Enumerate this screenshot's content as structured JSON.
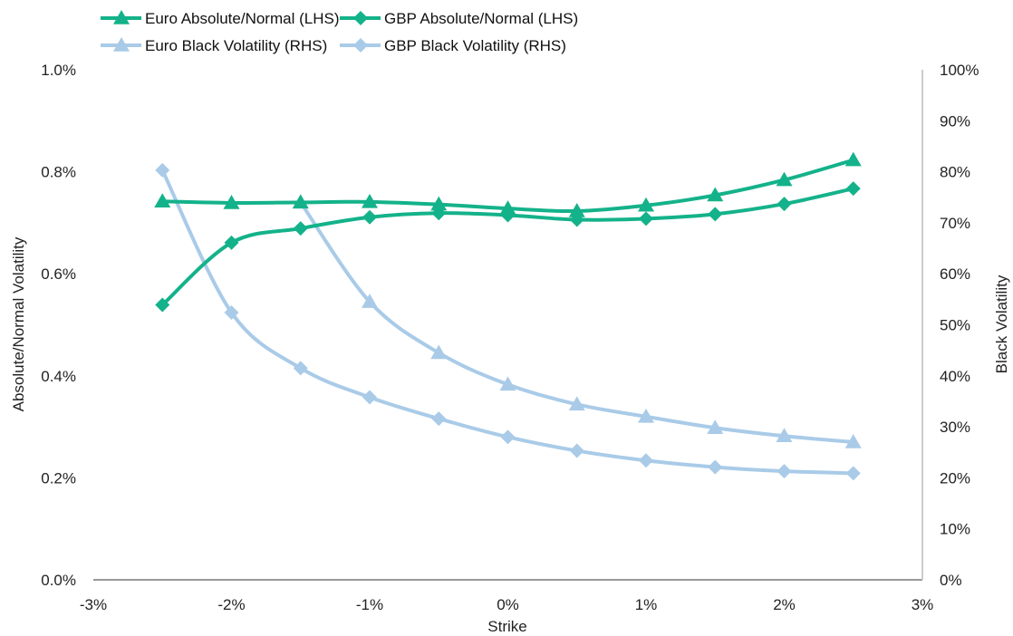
{
  "chart_data": {
    "type": "line",
    "xlabel": "Strike",
    "ylabel": "Absolute/Normal Volatility",
    "y2label": "Black Volatility",
    "xlim": [
      -3,
      3
    ],
    "ylim": [
      0,
      1.0
    ],
    "y2lim": [
      0,
      100
    ],
    "x_ticks": [
      "-3%",
      "-2%",
      "-1%",
      "0%",
      "1%",
      "2%",
      "3%"
    ],
    "y_ticks": [
      "0.0%",
      "0.2%",
      "0.4%",
      "0.6%",
      "0.8%",
      "1.0%"
    ],
    "y2_ticks": [
      "0%",
      "10%",
      "20%",
      "30%",
      "40%",
      "50%",
      "60%",
      "70%",
      "80%",
      "90%",
      "100%"
    ],
    "legend_position": "top-left",
    "grid": false,
    "colors": {
      "green": "#14b28a",
      "lightblue": "#a9cbe8",
      "axis": "#999999"
    },
    "x": [
      -2.5,
      -2.0,
      -1.5,
      -1.0,
      -0.5,
      0.0,
      0.5,
      1.0,
      1.5,
      2.0,
      2.5
    ],
    "series": [
      {
        "name": "Euro Absolute/Normal (LHS)",
        "axis": "left",
        "marker": "triangle",
        "color": "#14b28a",
        "values": [
          0.742,
          0.739,
          0.74,
          0.741,
          0.736,
          0.728,
          0.723,
          0.734,
          0.754,
          0.784,
          0.823
        ]
      },
      {
        "name": "GBP Absolute/Normal (LHS)",
        "axis": "left",
        "marker": "diamond",
        "color": "#14b28a",
        "values": [
          0.539,
          0.661,
          0.689,
          0.711,
          0.719,
          0.715,
          0.706,
          0.708,
          0.717,
          0.737,
          0.767
        ]
      },
      {
        "name": "Euro Black Volatility (RHS)",
        "axis": "right",
        "marker": "triangle",
        "color": "#a9cbe8",
        "values": [
          null,
          null,
          74.0,
          54.5,
          44.5,
          38.3,
          34.4,
          32.0,
          29.8,
          28.2,
          27.0
        ]
      },
      {
        "name": "GBP Black Volatility (RHS)",
        "axis": "right",
        "marker": "diamond",
        "color": "#a9cbe8",
        "values": [
          80.3,
          52.4,
          41.5,
          35.8,
          31.6,
          28.0,
          25.3,
          23.4,
          22.1,
          21.3,
          20.9
        ]
      }
    ]
  }
}
